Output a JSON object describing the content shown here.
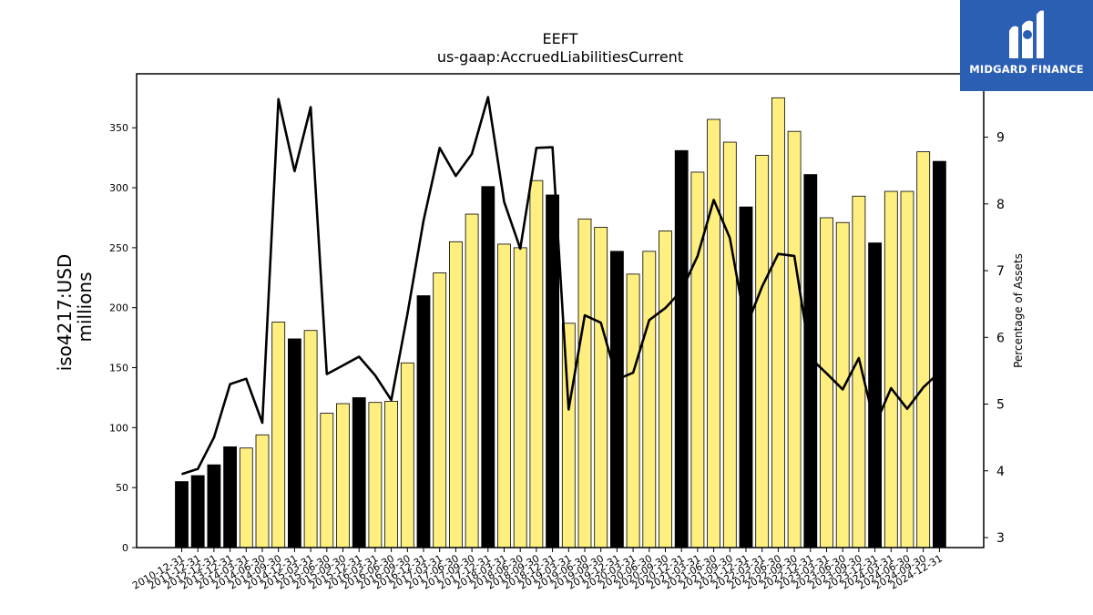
{
  "chart_data": {
    "type": "bar",
    "title": "EEFT",
    "subtitle": "us-gaap:AccruedLiabilitiesCurrent",
    "ylabel": "iso4217:USD",
    "ylabel_unit": "millions",
    "y2label": "Percentage of Assets",
    "ylim": [
      0,
      395
    ],
    "y2lim": [
      2.85,
      9.95
    ],
    "yticks": [
      0,
      50,
      100,
      150,
      200,
      250,
      300,
      350
    ],
    "y2ticks": [
      3,
      4,
      5,
      6,
      7,
      8,
      9
    ],
    "categories": [
      "2010-12-31",
      "2011-12-31",
      "2012-12-31",
      "2013-12-31",
      "2014-03-31",
      "2014-06-30",
      "2014-09-30",
      "2014-12-31",
      "2015-03-31",
      "2015-06-30",
      "2015-09-30",
      "2015-12-31",
      "2016-03-31",
      "2016-06-30",
      "2016-09-30",
      "2016-12-31",
      "2017-03-31",
      "2017-06-30",
      "2017-09-30",
      "2017-12-31",
      "2018-03-31",
      "2018-06-30",
      "2018-09-30",
      "2018-12-31",
      "2019-03-31",
      "2019-06-30",
      "2019-09-30",
      "2019-12-31",
      "2020-03-31",
      "2020-06-30",
      "2020-09-30",
      "2020-12-31",
      "2021-03-31",
      "2021-06-30",
      "2021-09-30",
      "2021-12-31",
      "2022-03-31",
      "2022-06-30",
      "2022-09-30",
      "2022-12-31",
      "2023-03-31",
      "2023-06-30",
      "2023-09-30",
      "2023-12-31",
      "2024-03-31",
      "2024-06-30",
      "2024-09-30",
      "2024-12-31"
    ],
    "xtick_labels": [
      "2010-12-31",
      "2011-12-31",
      "2012-12-31",
      "2013-12-31",
      "2014-03-31",
      "2014-06-30",
      "2014-09-30",
      "2014-12-31",
      "2015-03-31",
      "2015-06-30",
      "2015-09-30",
      "2015-12-31",
      "2016-03-31",
      "2016-06-30",
      "2016-09-30",
      "2016-12-31",
      "2017-03-31",
      "2017-06-30",
      "2017-09-30",
      "2017-12-31",
      "2018-03-31",
      "2018-06-30",
      "2018-09-30",
      "2018-12-31",
      "2019-03-31",
      "2019-06-30",
      "2019-09-30",
      "2019-12-31",
      "2020-03-31",
      "2020-06-30",
      "2020-09-30",
      "2020-12-31",
      "2021-03-31",
      "2021-06-30",
      "2021-09-30",
      "2021-12-31",
      "2022-03-31",
      "2022-06-30",
      "2022-09-30",
      "2022-12-31",
      "2023-03-31",
      "2023-06-30",
      "2023-09-30",
      "2023-12-31",
      "2024-03-31",
      "2024-06-30",
      "2024-09-30",
      "2024-12-31"
    ],
    "series": [
      {
        "type": "bar",
        "values": [
          55,
          60,
          69,
          84,
          83,
          94,
          188,
          174,
          181,
          112,
          120,
          125,
          121,
          122,
          154,
          210,
          229,
          255,
          278,
          301,
          253,
          250,
          306,
          294,
          187,
          274,
          267,
          247,
          228,
          247,
          264,
          331,
          313,
          357,
          338,
          284,
          327,
          375,
          347,
          311,
          275,
          271,
          293,
          254,
          297,
          297,
          330,
          322
        ],
        "colors": [
          "#000000",
          "#000000",
          "#000000",
          "#000000",
          "#ffee80",
          "#ffee80",
          "#ffee80",
          "#000000",
          "#ffee80",
          "#ffee80",
          "#ffee80",
          "#000000",
          "#ffee80",
          "#ffee80",
          "#ffee80",
          "#000000",
          "#ffee80",
          "#ffee80",
          "#ffee80",
          "#000000",
          "#ffee80",
          "#ffee80",
          "#ffee80",
          "#000000",
          "#ffee80",
          "#ffee80",
          "#ffee80",
          "#000000",
          "#ffee80",
          "#ffee80",
          "#ffee80",
          "#000000",
          "#ffee80",
          "#ffee80",
          "#ffee80",
          "#000000",
          "#ffee80",
          "#ffee80",
          "#ffee80",
          "#000000",
          "#ffee80",
          "#ffee80",
          "#ffee80",
          "#000000",
          "#ffee80",
          "#ffee80",
          "#ffee80",
          "#000000"
        ]
      },
      {
        "type": "line",
        "axis": "right",
        "values": [
          3.95,
          4.03,
          4.5,
          5.3,
          5.38,
          4.72,
          9.57,
          8.49,
          9.45,
          5.45,
          5.58,
          5.71,
          5.43,
          5.06,
          6.35,
          7.75,
          8.84,
          8.42,
          8.75,
          9.6,
          8.03,
          7.33,
          8.84,
          8.85,
          4.92,
          6.33,
          6.22,
          5.37,
          5.47,
          6.26,
          6.44,
          6.7,
          7.22,
          8.06,
          7.49,
          6.15,
          6.76,
          7.25,
          7.22,
          5.69,
          5.46,
          5.22,
          5.69,
          4.68,
          5.24,
          4.93,
          5.25,
          5.48
        ],
        "color": "#000000"
      }
    ],
    "grid": false,
    "legend": "none"
  },
  "logo": {
    "text": "MIDGARD FINANCE",
    "bg": "#2b5fb4"
  }
}
